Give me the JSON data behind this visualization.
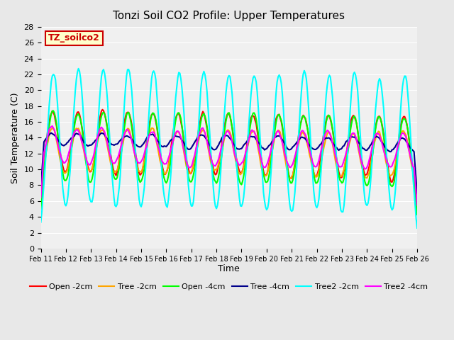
{
  "title": "Tonzi Soil CO2 Profile: Upper Temperatures",
  "xlabel": "Time",
  "ylabel": "Soil Temperature (C)",
  "watermark": "TZ_soilco2",
  "ylim": [
    0,
    28
  ],
  "yticks": [
    0,
    2,
    4,
    6,
    8,
    10,
    12,
    14,
    16,
    18,
    20,
    22,
    24,
    26,
    28
  ],
  "x_labels": [
    "Feb 11",
    "Feb 12",
    "Feb 13",
    "Feb 14",
    "Feb 15",
    "Feb 16",
    "Feb 17",
    "Feb 18",
    "Feb 19",
    "Feb 20",
    "Feb 21",
    "Feb 22",
    "Feb 23",
    "Feb 24",
    "Feb 25",
    "Feb 26"
  ],
  "series": {
    "Open -2cm": {
      "color": "#FF0000",
      "lw": 1.5
    },
    "Tree -2cm": {
      "color": "#FFA500",
      "lw": 1.5
    },
    "Open -4cm": {
      "color": "#00FF00",
      "lw": 1.5
    },
    "Tree -4cm": {
      "color": "#00008B",
      "lw": 1.5
    },
    "Tree2 -2cm": {
      "color": "#00FFFF",
      "lw": 1.5
    },
    "Tree2 -4cm": {
      "color": "#FF00FF",
      "lw": 1.5
    }
  },
  "bg_color": "#E8E8E8",
  "plot_bg": "#F0F0F0",
  "n_points": 361
}
